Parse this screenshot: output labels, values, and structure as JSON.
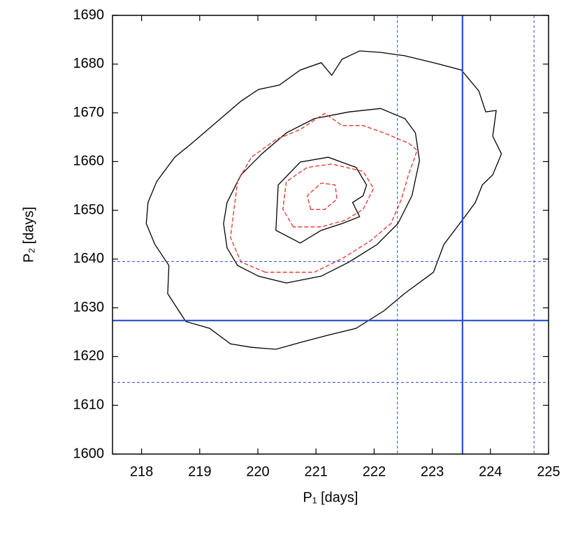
{
  "chart_data": {
    "type": "contour",
    "xlabel": "P₁ [days]",
    "ylabel": "P₂ [days]",
    "xlim": [
      217.5,
      225
    ],
    "ylim": [
      1600,
      1690
    ],
    "xticks": [
      218,
      219,
      220,
      221,
      222,
      223,
      224,
      225
    ],
    "yticks": [
      1600,
      1610,
      1620,
      1630,
      1640,
      1650,
      1660,
      1670,
      1680,
      1690
    ],
    "line_color": "#2a4fcf",
    "vlines": [
      {
        "value": 223.52,
        "dashed": false
      },
      {
        "value": 222.4,
        "dashed": true
      },
      {
        "value": 224.75,
        "dashed": true
      }
    ],
    "hlines": [
      {
        "value": 1627.4,
        "dashed": false
      },
      {
        "value": 1639.5,
        "dashed": true
      },
      {
        "value": 1614.7,
        "dashed": true
      }
    ],
    "series": [
      {
        "color": "#000000",
        "dashed": false,
        "closed": true,
        "x": [
          218.76,
          218.45,
          218.47,
          218.23,
          218.08,
          218.11,
          218.26,
          218.57,
          218.87,
          219.29,
          219.71,
          220.01,
          220.37,
          220.73,
          221.09,
          221.27,
          221.45,
          221.75,
          222.11,
          222.53,
          223.02,
          223.5,
          223.8,
          223.92,
          224.1,
          224.04,
          224.19,
          224.04,
          223.86,
          223.74,
          223.56,
          223.2,
          223.02,
          222.53,
          222.17,
          221.69,
          221.21,
          220.73,
          220.31,
          219.89,
          219.53,
          219.17
        ],
        "y": [
          1627.2,
          1632.9,
          1638.7,
          1643.0,
          1647.3,
          1651.6,
          1655.9,
          1660.9,
          1663.8,
          1668.1,
          1672.4,
          1674.8,
          1675.7,
          1678.8,
          1680.3,
          1677.7,
          1681.0,
          1682.7,
          1682.4,
          1681.7,
          1680.3,
          1678.8,
          1674.5,
          1670.2,
          1670.5,
          1665.2,
          1661.6,
          1657.3,
          1655.2,
          1651.6,
          1648.7,
          1643.0,
          1637.3,
          1633.0,
          1629.4,
          1625.8,
          1624.4,
          1622.9,
          1621.5,
          1621.9,
          1622.6,
          1625.8
        ]
      },
      {
        "color": "#000000",
        "dashed": false,
        "closed": true,
        "x": [
          220.49,
          220.01,
          219.65,
          219.47,
          219.41,
          219.47,
          219.71,
          220.07,
          220.49,
          220.97,
          221.57,
          222.11,
          222.53,
          222.71,
          222.78,
          222.65,
          222.41,
          222.05,
          221.57,
          221.09
        ],
        "y": [
          1635.1,
          1636.5,
          1638.7,
          1642.3,
          1647.3,
          1651.6,
          1657.3,
          1661.6,
          1665.9,
          1668.8,
          1670.2,
          1670.9,
          1668.8,
          1665.9,
          1660.2,
          1653.0,
          1647.3,
          1643.0,
          1639.4,
          1636.5
        ]
      },
      {
        "color": "#000000",
        "dashed": false,
        "closed": true,
        "x": [
          220.73,
          220.31,
          220.35,
          220.73,
          221.21,
          221.69,
          221.87,
          221.81,
          221.63,
          221.75,
          221.45,
          221.09
        ],
        "y": [
          1643.3,
          1645.9,
          1655.2,
          1659.9,
          1660.9,
          1658.8,
          1655.2,
          1653.0,
          1651.6,
          1648.7,
          1647.3,
          1645.9
        ]
      },
      {
        "color": "#e8302a",
        "dashed": true,
        "closed": true,
        "x": [
          220.13,
          219.71,
          219.53,
          219.59,
          219.65,
          219.89,
          220.31,
          220.73,
          221.15,
          221.45,
          221.81,
          222.17,
          222.59,
          222.74,
          222.59,
          222.47,
          222.29,
          221.93,
          221.45,
          220.97,
          220.49
        ],
        "y": [
          1637.3,
          1639.4,
          1644.4,
          1650.2,
          1655.9,
          1660.9,
          1664.5,
          1666.6,
          1669.9,
          1667.4,
          1667.4,
          1665.9,
          1663.8,
          1662.3,
          1657.3,
          1652.3,
          1647.3,
          1643.7,
          1640.1,
          1637.3,
          1637.3
        ]
      },
      {
        "color": "#e8302a",
        "dashed": true,
        "closed": true,
        "x": [
          220.61,
          220.43,
          220.49,
          220.85,
          221.27,
          221.81,
          221.99,
          221.81,
          221.51,
          221.09
        ],
        "y": [
          1646.6,
          1650.2,
          1655.9,
          1658.8,
          1659.5,
          1658.0,
          1654.5,
          1650.2,
          1648.0,
          1646.6
        ]
      },
      {
        "color": "#e8302a",
        "dashed": true,
        "closed": true,
        "x": [
          220.91,
          220.85,
          221.09,
          221.33,
          221.36,
          221.15
        ],
        "y": [
          1650.2,
          1653.0,
          1655.6,
          1655.2,
          1652.3,
          1650.2
        ]
      }
    ]
  }
}
